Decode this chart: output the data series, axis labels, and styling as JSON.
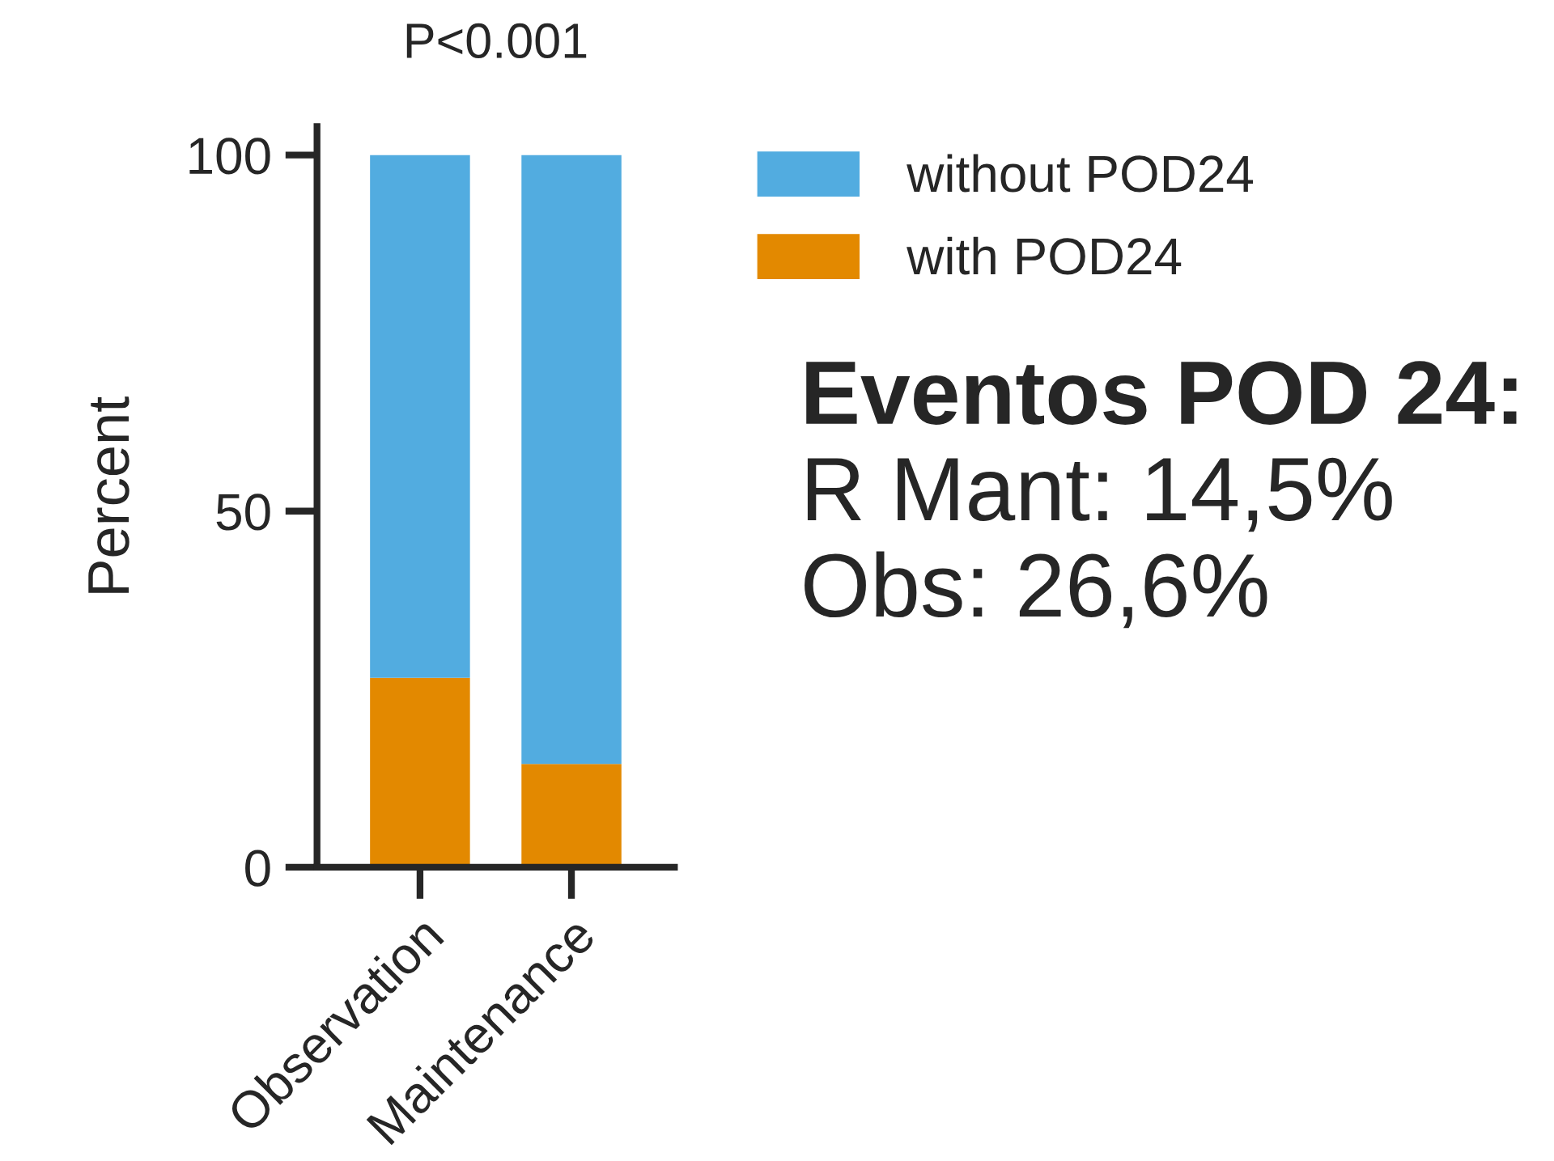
{
  "chart_data": {
    "type": "bar",
    "stacked": true,
    "ylabel": "Percent",
    "categories": [
      "Observation",
      "Maintenance"
    ],
    "series": [
      {
        "name": "with POD24",
        "color": "#e38900",
        "values": [
          26.6,
          14.5
        ]
      },
      {
        "name": "without POD24",
        "color": "#52ace0",
        "values": [
          73.4,
          85.5
        ]
      }
    ],
    "ylim": [
      0,
      104
    ],
    "yticks": [
      0,
      50,
      100
    ],
    "grid": false,
    "legend": "top right",
    "annotations": [
      "P<0.001",
      "Eventos POD 24:",
      "R Mant: 14,5%",
      "Obs: 26,6%"
    ]
  }
}
